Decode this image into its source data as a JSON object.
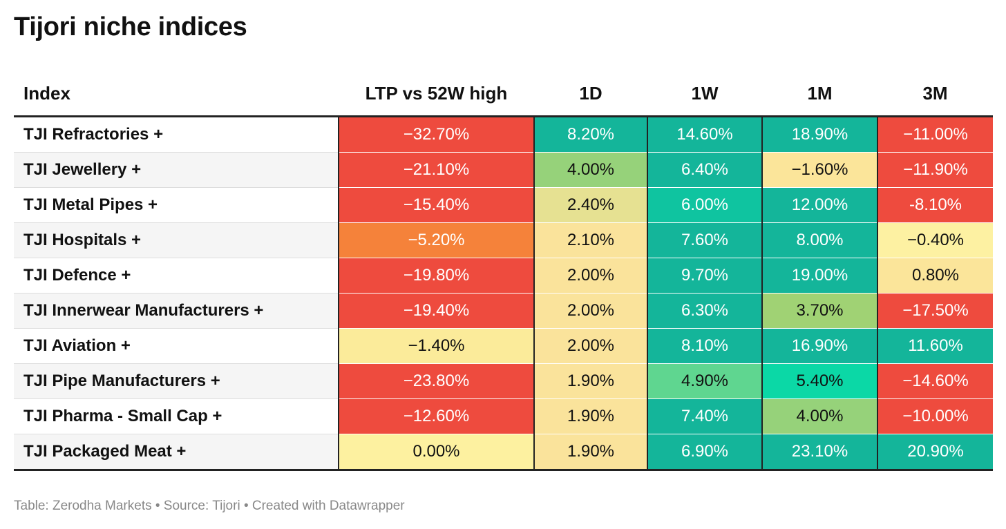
{
  "title": "Tijori niche indices",
  "source": "Table: Zerodha Markets • Source: Tijori • Created with Datawrapper",
  "chart_data": {
    "type": "table",
    "title": "Tijori niche indices",
    "columns": [
      "Index",
      "LTP vs 52W high",
      "1D",
      "1W",
      "1M",
      "3M"
    ],
    "rows": [
      {
        "index": "TJI Refractories +",
        "values": [
          "−32.70%",
          "8.20%",
          "14.60%",
          "18.90%",
          "−11.00%"
        ]
      },
      {
        "index": "TJI Jewellery +",
        "values": [
          "−21.10%",
          "4.00%",
          "6.40%",
          "−1.60%",
          "−11.90%"
        ]
      },
      {
        "index": "TJI Metal Pipes +",
        "values": [
          "−15.40%",
          "2.40%",
          "6.00%",
          "12.00%",
          "-8.10%"
        ]
      },
      {
        "index": "TJI Hospitals +",
        "values": [
          "−5.20%",
          "2.10%",
          "7.60%",
          "8.00%",
          "−0.40%"
        ]
      },
      {
        "index": "TJI Defence +",
        "values": [
          "−19.80%",
          "2.00%",
          "9.70%",
          "19.00%",
          "0.80%"
        ]
      },
      {
        "index": "TJI Innerwear Manufacturers +",
        "values": [
          "−19.40%",
          "2.00%",
          "6.30%",
          "3.70%",
          "−17.50%"
        ]
      },
      {
        "index": "TJI Aviation +",
        "values": [
          "−1.40%",
          "2.00%",
          "8.10%",
          "16.90%",
          "11.60%"
        ]
      },
      {
        "index": "TJI Pipe Manufacturers +",
        "values": [
          "−23.80%",
          "1.90%",
          "4.90%",
          "5.40%",
          "−14.60%"
        ]
      },
      {
        "index": "TJI Pharma - Small Cap +",
        "values": [
          "−12.60%",
          "1.90%",
          "7.40%",
          "4.00%",
          "−10.00%"
        ]
      },
      {
        "index": "TJI Packaged Meat +",
        "values": [
          "0.00%",
          "1.90%",
          "6.90%",
          "23.10%",
          "20.90%"
        ]
      }
    ],
    "cell_colors": [
      [
        "#ee4b3e",
        "#14b59a",
        "#14b59a",
        "#14b59a",
        "#ee4b3e"
      ],
      [
        "#ee4b3e",
        "#96d27a",
        "#14b59a",
        "#fbe59a",
        "#ee4b3e"
      ],
      [
        "#ee4b3e",
        "#e6e192",
        "#0fc4a0",
        "#14b59a",
        "#ee4b3e"
      ],
      [
        "#f5823a",
        "#fae39b",
        "#14b59a",
        "#14b59a",
        "#fdf1a2"
      ],
      [
        "#ee4b3e",
        "#fae39b",
        "#14b59a",
        "#14b59a",
        "#fbe59a"
      ],
      [
        "#ee4b3e",
        "#fae39b",
        "#14b59a",
        "#a0d274",
        "#ee4b3e"
      ],
      [
        "#fbeb9a",
        "#fae39b",
        "#14b59a",
        "#14b59a",
        "#14b59a"
      ],
      [
        "#ee4b3e",
        "#fae39b",
        "#5fd690",
        "#0bd8a6",
        "#ee4b3e"
      ],
      [
        "#ee4b3e",
        "#fae39b",
        "#14b59a",
        "#96d27a",
        "#ee4b3e"
      ],
      [
        "#fdf1a0",
        "#fae39b",
        "#14b59a",
        "#14b59a",
        "#14b59a"
      ]
    ],
    "light_text_colors": [
      "#96d27a",
      "#e6e192",
      "#fae39b",
      "#fbe59a",
      "#fdf1a2",
      "#a0d274",
      "#fbeb9a",
      "#5fd690",
      "#0bd8a6",
      "#fdf1a0"
    ]
  }
}
